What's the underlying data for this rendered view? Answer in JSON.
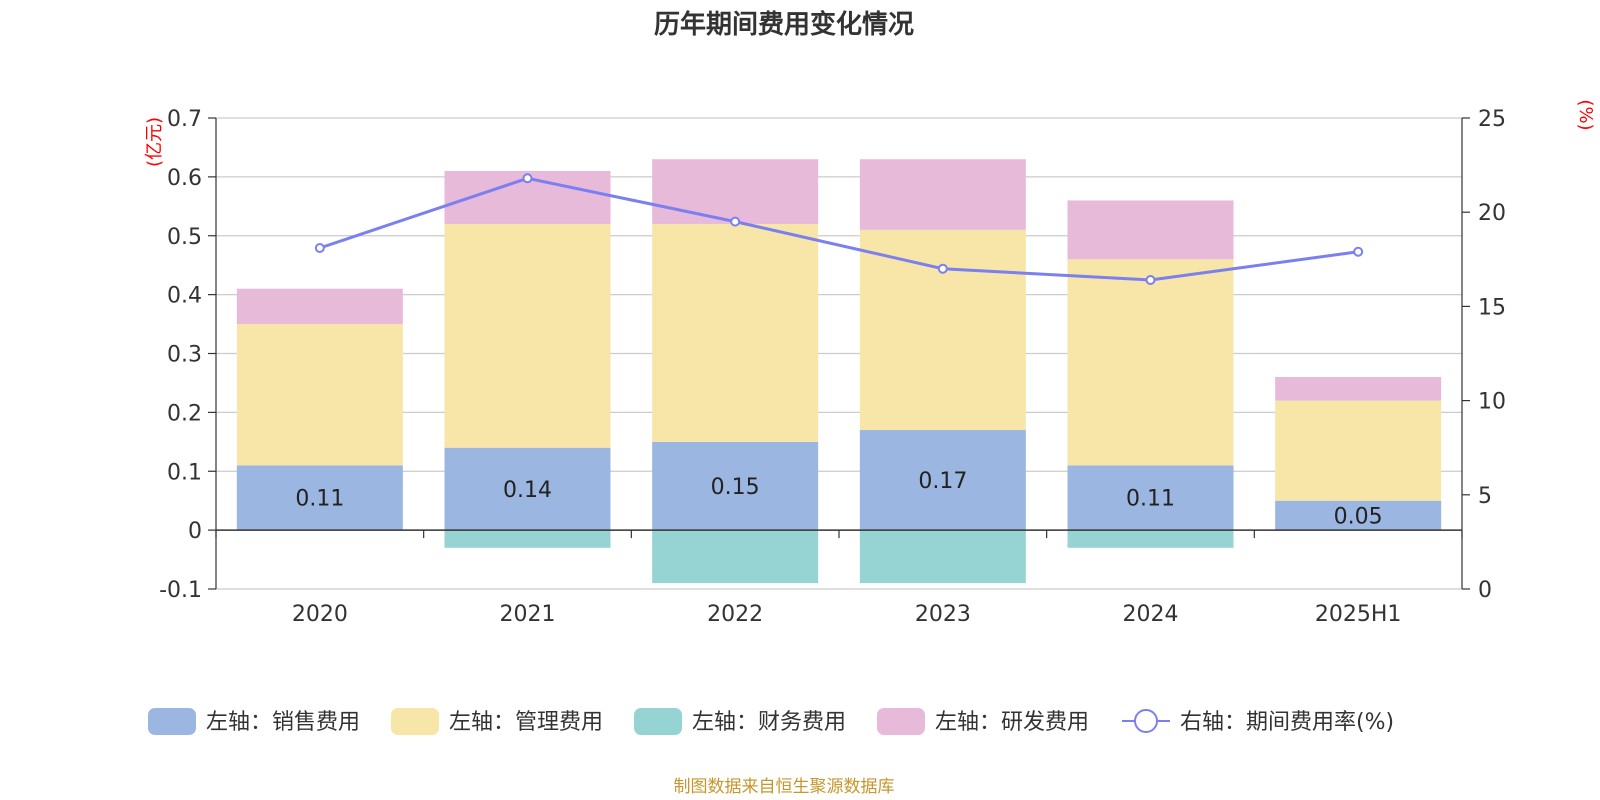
{
  "chart_data": {
    "type": "bar",
    "title": "历年期间费用变化情况",
    "categories": [
      "2020",
      "2021",
      "2022",
      "2023",
      "2024",
      "2025H1"
    ],
    "left_axis": {
      "unit": "(亿元)",
      "ylim": [
        -0.1,
        0.7
      ],
      "ticks": [
        "0.7",
        "0.6",
        "0.5",
        "0.4",
        "0.3",
        "0.2",
        "0.1",
        "0",
        "-0.1"
      ]
    },
    "right_axis": {
      "unit": "(%)",
      "ylim": [
        0,
        25
      ],
      "ticks": [
        "25",
        "20",
        "15",
        "10",
        "5",
        "0"
      ]
    },
    "series": [
      {
        "name": "左轴：销售费用",
        "type": "bar",
        "color": "#9bb6e0",
        "values": [
          0.11,
          0.14,
          0.15,
          0.17,
          0.11,
          0.05
        ],
        "labels": [
          "0.11",
          "0.14",
          "0.15",
          "0.17",
          "0.11",
          "0.05"
        ]
      },
      {
        "name": "左轴：管理费用",
        "type": "bar",
        "color": "#f7e6a8",
        "values": [
          0.24,
          0.38,
          0.37,
          0.34,
          0.35,
          0.17
        ]
      },
      {
        "name": "左轴：财务费用",
        "type": "bar",
        "color": "#96d4d4",
        "values": [
          0.0,
          -0.03,
          -0.09,
          -0.09,
          -0.03,
          0.0
        ]
      },
      {
        "name": "左轴：研发费用",
        "type": "bar",
        "color": "#e8bad9",
        "values": [
          0.06,
          0.09,
          0.11,
          0.12,
          0.1,
          0.04
        ]
      },
      {
        "name": "右轴：期间费用率(%)",
        "type": "line",
        "color": "#7b7ff0",
        "values": [
          18.1,
          21.8,
          19.5,
          17.0,
          16.4,
          17.9
        ]
      }
    ],
    "grid": true,
    "legend": "bottom"
  },
  "footer": {
    "source": "制图数据来自恒生聚源数据库"
  }
}
